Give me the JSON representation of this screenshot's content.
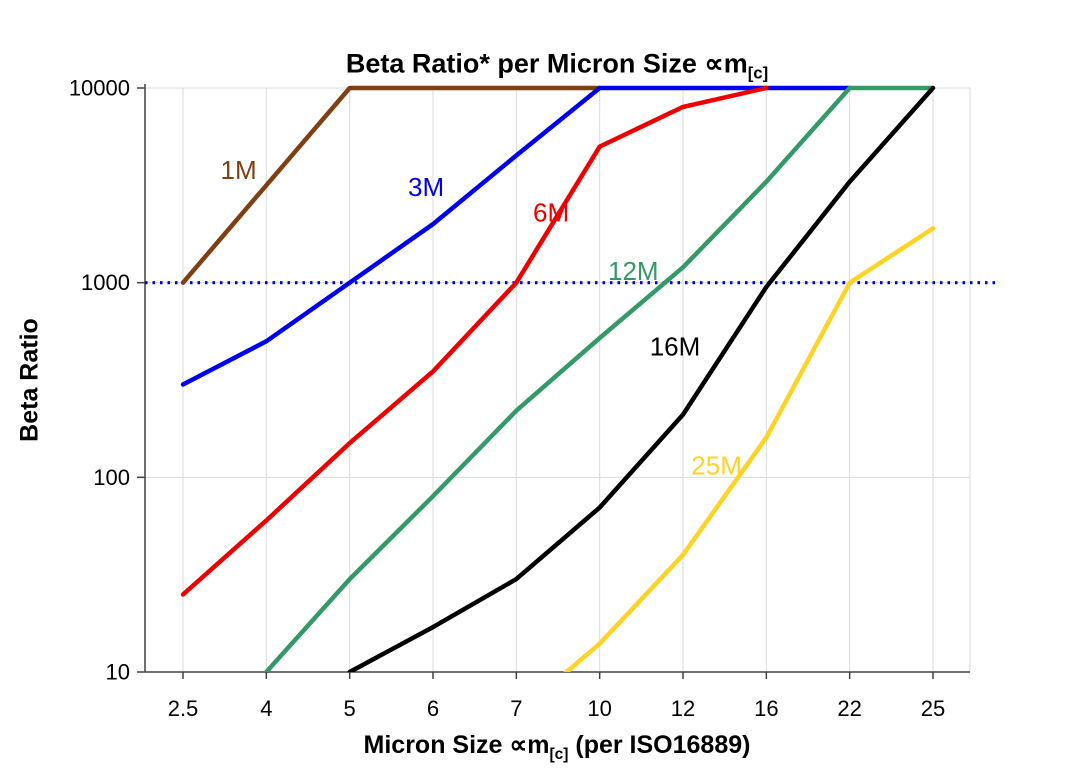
{
  "title": {
    "pre": "Beta Ratio* per Micron Size ∝m",
    "sub": "[c]"
  },
  "x_axis": {
    "pre": "Micron Size ∝m",
    "sub": "[c]",
    "post": " (per ISO16889)"
  },
  "y_axis": {
    "label": "Beta Ratio"
  },
  "chart_data": {
    "type": "line",
    "x_categories": [
      "2.5",
      "4",
      "5",
      "6",
      "7",
      "10",
      "12",
      "16",
      "22",
      "25"
    ],
    "y_scale": "log",
    "y_ticks": [
      "10",
      "100",
      "1000",
      "10000"
    ],
    "ylim": [
      10,
      10000
    ],
    "grid": true,
    "legend": "inline-labels",
    "reference_line": {
      "y": 1000,
      "color": "#0000dd",
      "style": "dotted"
    },
    "series": [
      {
        "name": "1M",
        "color": "#7f3f10",
        "values": [
          1000,
          3162,
          10000,
          10000,
          10000,
          10000,
          null,
          null,
          null,
          null
        ],
        "label": {
          "xi": 0.45,
          "v": 3800
        }
      },
      {
        "name": "3M",
        "color": "#0000ee",
        "values": [
          300,
          500,
          1000,
          2000,
          4500,
          10000,
          10000,
          10000,
          10000,
          null
        ],
        "label": {
          "xi": 2.7,
          "v": 3100
        }
      },
      {
        "name": "6M",
        "color": "#ee0000",
        "values": [
          25,
          60,
          150,
          350,
          1000,
          5000,
          8000,
          10000,
          null,
          null
        ],
        "label": {
          "xi": 4.2,
          "v": 2300
        }
      },
      {
        "name": "12M",
        "color": "#339966",
        "values": [
          null,
          10,
          30,
          80,
          220,
          520,
          1200,
          3300,
          10000,
          10000
        ],
        "label": {
          "xi": 5.1,
          "v": 1150
        }
      },
      {
        "name": "16M",
        "color": "#000000",
        "values": [
          null,
          null,
          10,
          17,
          30,
          70,
          210,
          950,
          3300,
          10000
        ],
        "label": {
          "xi": 5.6,
          "v": 470
        }
      },
      {
        "name": "25M",
        "color": "#ffd326",
        "values": [
          null,
          null,
          null,
          null,
          6,
          14,
          40,
          160,
          1000,
          1900
        ],
        "label": {
          "xi": 6.1,
          "v": 115
        }
      }
    ]
  }
}
